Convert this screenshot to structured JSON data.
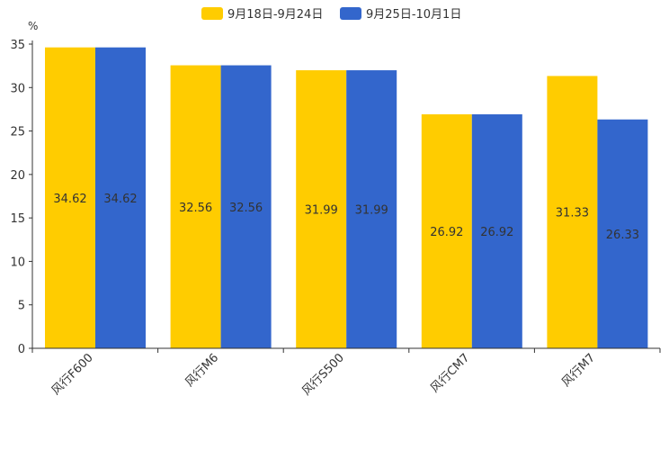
{
  "chart_data": {
    "type": "bar",
    "title": "",
    "xlabel": "",
    "ylabel": "",
    "unit_label": "%",
    "categories": [
      "风行F600",
      "风行M6",
      "风行S500",
      "风行CM7",
      "风行M7"
    ],
    "series": [
      {
        "name": "9月18日-9月24日",
        "color": "#FFCC00",
        "values": [
          34.62,
          32.56,
          31.99,
          26.92,
          31.33
        ]
      },
      {
        "name": "9月25日-10月1日",
        "color": "#3366CC",
        "values": [
          34.62,
          32.56,
          31.99,
          26.92,
          26.33
        ]
      }
    ],
    "ylim": [
      0,
      35
    ],
    "yticks": [
      0,
      5,
      10,
      15,
      20,
      25,
      30,
      35
    ],
    "grid": false,
    "legend_position": "top-center",
    "data_labels": "center"
  }
}
